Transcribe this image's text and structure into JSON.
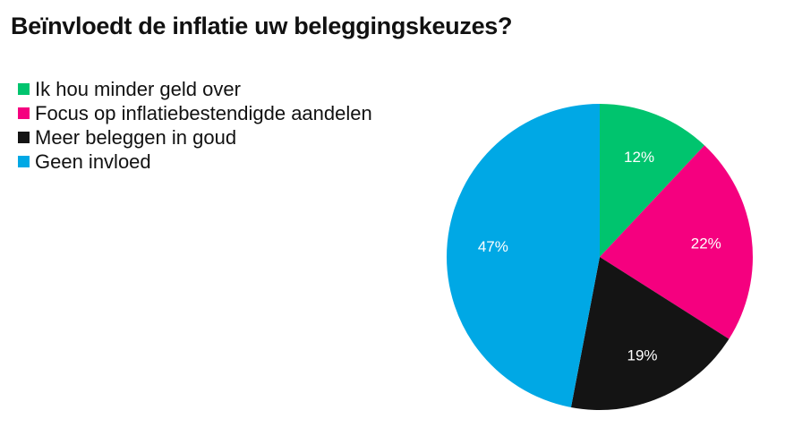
{
  "chart_data": {
    "type": "pie",
    "title": "Beïnvloedt de inflatie uw beleggingskeuzes?",
    "legend_position": "top-left",
    "slices": [
      {
        "label": "Ik hou minder geld over",
        "value": 12,
        "value_label": "12%",
        "color": "#00c46e"
      },
      {
        "label": "Focus op inflatiebestendigde aandelen",
        "value": 22,
        "value_label": "22%",
        "color": "#f5007f"
      },
      {
        "label": "Meer beleggen in goud",
        "value": 19,
        "value_label": "19%",
        "color": "#141414"
      },
      {
        "label": "Geen invloed",
        "value": 47,
        "value_label": "47%",
        "color": "#00a8e5"
      }
    ]
  }
}
